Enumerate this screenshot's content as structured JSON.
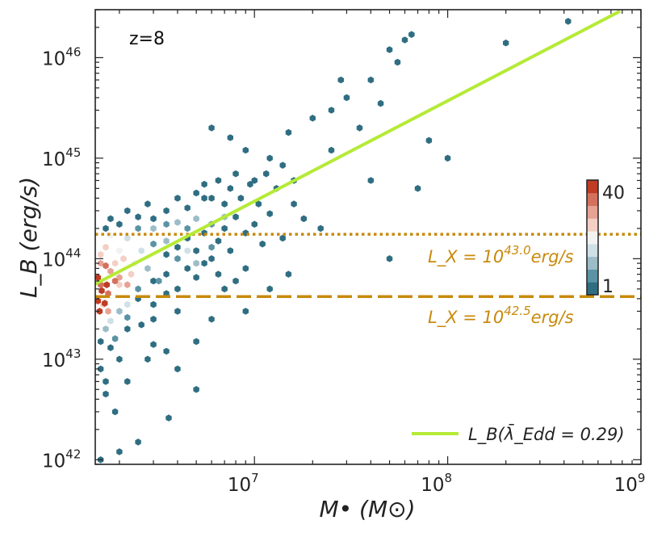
{
  "chart_data": {
    "type": "scatter",
    "subtype": "hexbin",
    "x_scale": "log",
    "y_scale": "log",
    "xlabel": "M• (M⊙)",
    "ylabel": "L_B (erg/s)",
    "x_range": [
      1500000,
      1000000000
    ],
    "y_range": [
      9e+41,
      3e+46
    ],
    "x_ticks": [
      {
        "value": 10000000,
        "base": "10",
        "exp": "7"
      },
      {
        "value": 100000000,
        "base": "10",
        "exp": "8"
      },
      {
        "value": 1000000000,
        "base": "10",
        "exp": "9"
      }
    ],
    "y_ticks": [
      {
        "value": 1e+42,
        "base": "10",
        "exp": "42"
      },
      {
        "value": 1e+43,
        "base": "10",
        "exp": "43"
      },
      {
        "value": 1e+44,
        "base": "10",
        "exp": "44"
      },
      {
        "value": 1e+45,
        "base": "10",
        "exp": "45"
      },
      {
        "value": 1e+46,
        "base": "10",
        "exp": "46"
      }
    ],
    "annotation": "z=8",
    "fit_line": {
      "label": "L_B(λ̄_Edd = 0.29)",
      "color": "#b5ea36",
      "points": [
        [
          1500000,
          5.6e+43
        ],
        [
          780000000,
          2.9e+46
        ]
      ]
    },
    "thresholds": [
      {
        "label_base": "L_X = 10",
        "label_exp": "43.0",
        "label_unit": "erg/s",
        "y": 1.75e+44,
        "style": "dotted",
        "color": "#c88a0c"
      },
      {
        "label_base": "L_X = 10",
        "label_exp": "42.5",
        "label_unit": "erg/s",
        "y": 4.2e+43,
        "style": "dashed",
        "color": "#c88a0c"
      }
    ],
    "colorbar": {
      "min_label": "1",
      "max_label": "40",
      "colors": [
        "#2f6e82",
        "#5b93a5",
        "#9cbcc8",
        "#cfe0e6",
        "#f2f2f2",
        "#f3cfc4",
        "#e6a393",
        "#d4715d",
        "#bf3c25"
      ]
    },
    "hexbins": [
      [
        5500000,
        4e+44,
        0
      ],
      [
        6000000,
        2e+45,
        0
      ],
      [
        7500000,
        1.6e+45,
        0
      ],
      [
        9000000,
        1.2e+45,
        0
      ],
      [
        12000000,
        1e+45,
        0
      ],
      [
        15000000,
        1.8e+45,
        0
      ],
      [
        20000000,
        2.5e+45,
        0
      ],
      [
        25000000,
        3e+45,
        0
      ],
      [
        30000000,
        4e+45,
        0
      ],
      [
        40000000,
        6e+45,
        0
      ],
      [
        50000000,
        1.2e+46,
        0
      ],
      [
        60000000,
        1.5e+46,
        0
      ],
      [
        65000000,
        1.7e+46,
        0
      ],
      [
        55000000,
        9e+45,
        0
      ],
      [
        45000000,
        3.5e+45,
        0
      ],
      [
        35000000,
        2e+45,
        0
      ],
      [
        28000000,
        6e+45,
        0
      ],
      [
        80000000,
        1.5e+45,
        0
      ],
      [
        100000000,
        1e+45,
        0
      ],
      [
        200000000,
        1.4e+46,
        0
      ],
      [
        420000000,
        2.3e+46,
        0
      ],
      [
        70000000,
        5e+44,
        0
      ],
      [
        50000000,
        1e+44,
        0
      ],
      [
        40000000,
        6e+44,
        0
      ],
      [
        18000000,
        2.5e+44,
        0
      ],
      [
        15000000,
        7e+43,
        0
      ],
      [
        12000000,
        5e+43,
        0
      ],
      [
        9000000,
        3e+43,
        0
      ],
      [
        6000000,
        2.5e+43,
        0
      ],
      [
        5000000,
        1.5e+43,
        0
      ],
      [
        4000000,
        8e+42,
        0
      ],
      [
        5000000,
        5e+42,
        0
      ],
      [
        3600000,
        2.6e+42,
        0
      ],
      [
        2500000,
        1.5e+42,
        0
      ],
      [
        2000000,
        1.2e+42,
        0
      ],
      [
        1600000,
        1e+42,
        0
      ],
      [
        1900000,
        3e+42,
        0
      ],
      [
        1700000,
        4.5e+42,
        0
      ],
      [
        2200000,
        6e+42,
        0
      ],
      [
        2800000,
        1e+43,
        0
      ],
      [
        3000000,
        1.4e+43,
        0
      ],
      [
        3500000,
        1.2e+43,
        0
      ],
      [
        8000000,
        6e+43,
        0
      ],
      [
        9000000,
        8e+43,
        0
      ],
      [
        22000000,
        2e+44,
        0
      ],
      [
        25000000,
        1.2e+45,
        0
      ],
      [
        10000000,
        6e+44,
        0
      ],
      [
        1700000,
        2e+44,
        0
      ],
      [
        1800000,
        2.5e+44,
        0
      ],
      [
        2000000,
        2.2e+44,
        0
      ],
      [
        2200000,
        3e+44,
        0
      ],
      [
        2500000,
        2.6e+44,
        0
      ],
      [
        2800000,
        3.5e+44,
        0
      ],
      [
        3000000,
        2.5e+44,
        0
      ],
      [
        3500000,
        3e+44,
        0
      ],
      [
        4000000,
        4e+44,
        0
      ],
      [
        4500000,
        3.2e+44,
        0
      ],
      [
        5000000,
        4.5e+44,
        0
      ],
      [
        5500000,
        5.5e+44,
        0
      ],
      [
        6000000,
        4e+44,
        0
      ],
      [
        6500000,
        6e+44,
        0
      ],
      [
        7000000,
        3.5e+44,
        0
      ],
      [
        7500000,
        5e+44,
        0
      ],
      [
        8000000,
        7e+44,
        0
      ],
      [
        8500000,
        4e+44,
        0
      ],
      [
        9500000,
        5.5e+44,
        0
      ],
      [
        10500000,
        3.5e+44,
        0
      ],
      [
        11500000,
        7e+44,
        0
      ],
      [
        13000000,
        5e+44,
        0
      ],
      [
        14000000,
        8.5e+44,
        0
      ],
      [
        16000000,
        6e+44,
        0
      ],
      [
        3500000,
        1.1e+44,
        0
      ],
      [
        4000000,
        1.3e+44,
        0
      ],
      [
        4500000,
        1.6e+44,
        0
      ],
      [
        5000000,
        1.2e+44,
        0
      ],
      [
        5500000,
        1.8e+44,
        0
      ],
      [
        6000000,
        1e+44,
        0
      ],
      [
        6500000,
        1.5e+44,
        0
      ],
      [
        7000000,
        2e+44,
        0
      ],
      [
        7500000,
        1.2e+44,
        0
      ],
      [
        8000000,
        2.6e+44,
        0
      ],
      [
        9000000,
        1.8e+44,
        0
      ],
      [
        10000000,
        2.2e+44,
        0
      ],
      [
        11000000,
        1.4e+44,
        0
      ],
      [
        12000000,
        2.8e+44,
        0
      ],
      [
        14000000,
        1.6e+44,
        0
      ],
      [
        16000000,
        3.5e+44,
        0
      ],
      [
        3000000,
        6e+43,
        0
      ],
      [
        3500000,
        7e+43,
        0
      ],
      [
        4000000,
        5e+43,
        0
      ],
      [
        4500000,
        8e+43,
        0
      ],
      [
        5000000,
        6.5e+43,
        0
      ],
      [
        5500000,
        9e+43,
        0
      ],
      [
        6500000,
        7e+43,
        0
      ],
      [
        7000000,
        5e+43,
        0
      ],
      [
        2500000,
        4e+43,
        0
      ],
      [
        3000000,
        3.5e+43,
        0
      ],
      [
        3500000,
        4.5e+43,
        0
      ],
      [
        4000000,
        3e+43,
        0
      ],
      [
        2200000,
        2e+43,
        0
      ],
      [
        2600000,
        2.2e+43,
        0
      ],
      [
        3000000,
        2.5e+43,
        0
      ],
      [
        1600000,
        1.5e+43,
        0
      ],
      [
        1800000,
        1.3e+43,
        0
      ],
      [
        2000000,
        1e+43,
        0
      ],
      [
        1600000,
        8e+42,
        0
      ],
      [
        1700000,
        6e+42,
        0
      ],
      [
        2500000,
        2e+44,
        1
      ],
      [
        3000000,
        2e+44,
        2
      ],
      [
        3500000,
        2.2e+44,
        1
      ],
      [
        4000000,
        2.3e+44,
        2
      ],
      [
        4500000,
        2e+44,
        1
      ],
      [
        5000000,
        2.5e+44,
        2
      ],
      [
        6000000,
        2.2e+44,
        1
      ],
      [
        7000000,
        2.6e+44,
        2
      ],
      [
        3000000,
        1.4e+44,
        1
      ],
      [
        3500000,
        1.5e+44,
        2
      ],
      [
        4000000,
        1e+44,
        1
      ],
      [
        4500000,
        1.2e+44,
        3
      ],
      [
        5000000,
        9e+43,
        2
      ],
      [
        6000000,
        1.3e+44,
        1
      ],
      [
        2800000,
        8e+43,
        2
      ],
      [
        3200000,
        6e+43,
        1
      ],
      [
        2500000,
        5e+43,
        1
      ],
      [
        2000000,
        3e+43,
        2
      ],
      [
        2200000,
        2.6e+43,
        1
      ],
      [
        1700000,
        2e+43,
        2
      ],
      [
        1900000,
        1.6e+43,
        1
      ],
      [
        2600000,
        1.2e+44,
        3
      ],
      [
        2200000,
        1.6e+44,
        3
      ],
      [
        2000000,
        1.2e+44,
        4
      ],
      [
        1800000,
        1.7e+44,
        4
      ],
      [
        2400000,
        9e+43,
        4
      ],
      [
        2200000,
        3.5e+43,
        3
      ],
      [
        1800000,
        2.4e+43,
        3
      ],
      [
        1600000,
        1.1e+44,
        5
      ],
      [
        1700000,
        1.3e+44,
        5
      ],
      [
        1900000,
        9e+43,
        5
      ],
      [
        2100000,
        1e+44,
        5
      ],
      [
        2300000,
        7e+43,
        5
      ],
      [
        2000000,
        5.5e+43,
        5
      ],
      [
        1650000,
        3.5e+43,
        5
      ],
      [
        1750000,
        3e+43,
        6
      ],
      [
        1600000,
        9e+43,
        6
      ],
      [
        1800000,
        7.5e+43,
        6
      ],
      [
        2000000,
        6.5e+43,
        6
      ],
      [
        2200000,
        5.5e+43,
        6
      ],
      [
        1700000,
        8.5e+43,
        7
      ],
      [
        1900000,
        6e+43,
        7
      ],
      [
        1600000,
        5.5e+43,
        7
      ],
      [
        1750000,
        4.5e+43,
        7
      ],
      [
        1550000,
        3.8e+43,
        8
      ],
      [
        1620000,
        4.8e+43,
        8
      ],
      [
        1580000,
        3e+43,
        8
      ],
      [
        1680000,
        3.6e+43,
        8
      ],
      [
        1550000,
        6.5e+43,
        8
      ],
      [
        1720000,
        5.5e+43,
        8
      ]
    ]
  },
  "legend": {
    "position": "bottom-right",
    "label": "L_B(λ̄_Edd = 0.29)"
  }
}
